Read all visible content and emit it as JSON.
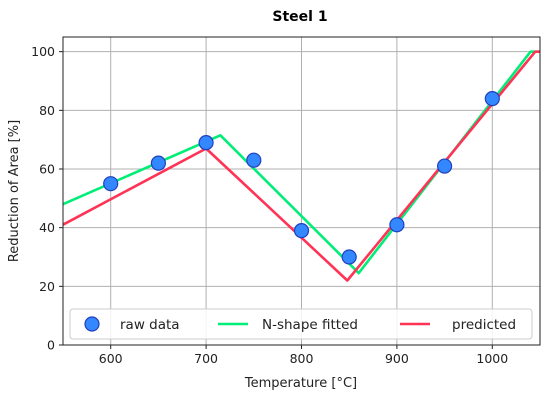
{
  "chart_data": {
    "type": "line",
    "title": "Steel 1",
    "xlabel": "Temperature [°C]",
    "ylabel": "Reduction of Area [%]",
    "xlim": [
      550,
      1050
    ],
    "ylim": [
      0,
      105
    ],
    "xticks": [
      600,
      700,
      800,
      900,
      1000
    ],
    "yticks": [
      0,
      20,
      40,
      60,
      80,
      100
    ],
    "grid": true,
    "legend_position": "lower center",
    "series": [
      {
        "name": "raw data",
        "kind": "scatter",
        "color": "#3388ff",
        "edge_color": "#1f3fbf",
        "x": [
          600,
          650,
          700,
          750,
          800,
          850,
          900,
          950,
          1000
        ],
        "y": [
          55,
          62,
          69,
          63,
          39,
          30,
          41,
          61,
          84
        ]
      },
      {
        "name": "N-shape fitted",
        "kind": "line",
        "color": "#00ee77",
        "x": [
          550,
          715,
          860,
          1040,
          1050
        ],
        "y": [
          48,
          71.5,
          24.5,
          100,
          100
        ]
      },
      {
        "name": "predicted",
        "kind": "line",
        "color": "#ff3355",
        "x": [
          550,
          700,
          848,
          1045,
          1050
        ],
        "y": [
          41,
          67,
          22,
          100,
          100
        ]
      }
    ]
  }
}
